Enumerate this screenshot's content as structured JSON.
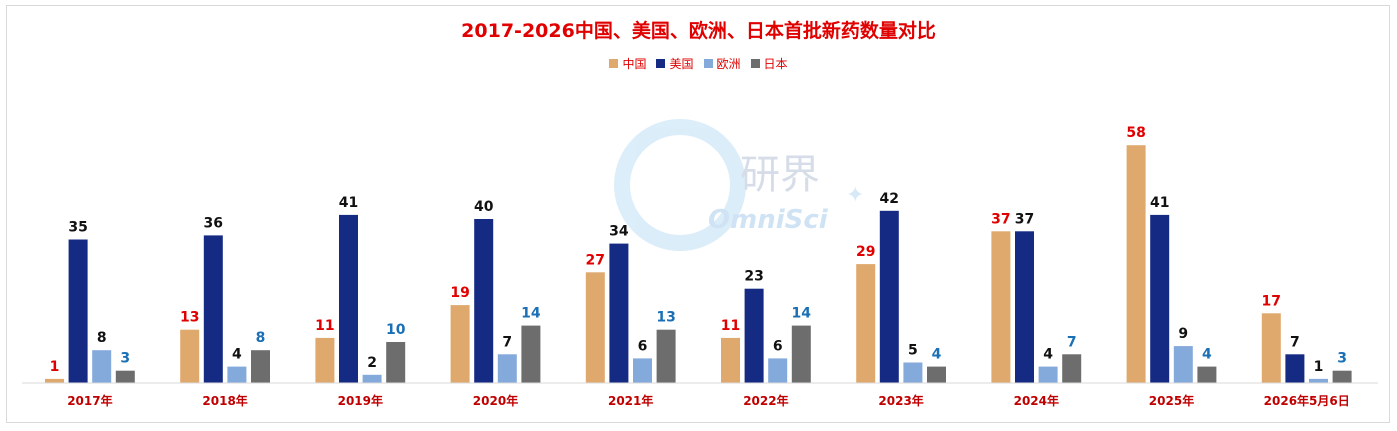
{
  "chart_data": {
    "type": "bar",
    "title": "2017-2026中国、美国、欧洲、日本首批新药数量对比",
    "categories": [
      "2017年",
      "2018年",
      "2019年",
      "2020年",
      "2021年",
      "2022年",
      "2023年",
      "2024年",
      "2025年",
      "2026年5月6日"
    ],
    "series": [
      {
        "name": "中国",
        "color": "#dfa96e",
        "label_color": "#e00000",
        "values": [
          1,
          13,
          11,
          19,
          27,
          11,
          29,
          37,
          58,
          17
        ]
      },
      {
        "name": "美国",
        "color": "#152a82",
        "label_color": "#111111",
        "values": [
          35,
          36,
          41,
          40,
          34,
          23,
          42,
          37,
          41,
          7
        ]
      },
      {
        "name": "欧洲",
        "color": "#84a9db",
        "label_color": "#111111",
        "values": [
          8,
          4,
          2,
          7,
          6,
          6,
          5,
          4,
          9,
          1
        ]
      },
      {
        "name": "日本",
        "color": "#6d6d6d",
        "label_color": "#1a6fb5",
        "values": [
          3,
          8,
          10,
          14,
          13,
          14,
          4,
          7,
          4,
          3
        ]
      }
    ],
    "legend_position": "top-center",
    "grid": false,
    "ylim": [
      0,
      60
    ]
  },
  "watermark": {
    "text_cn": "研界",
    "text_en": "OmniSci"
  }
}
